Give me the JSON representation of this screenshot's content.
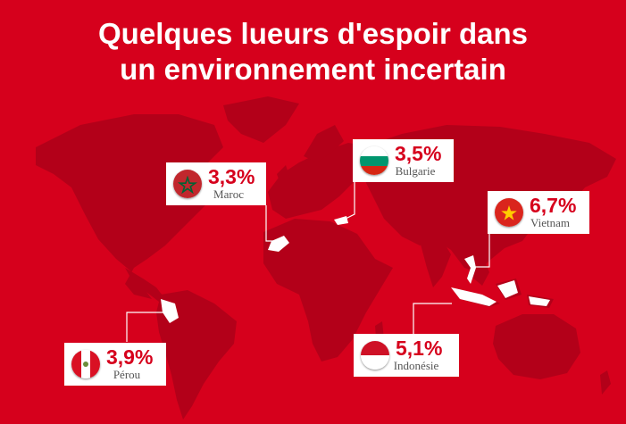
{
  "title": {
    "line1": "Quelques lueurs d'espoir dans",
    "line2": "un environnement incertain"
  },
  "colors": {
    "background": "#d6001c",
    "continents": "#b30019",
    "callout_bg": "#ffffff",
    "percent_text": "#d6001c",
    "country_text": "#555555"
  },
  "countries": [
    {
      "id": "maroc",
      "percent": "3,3%",
      "name": "Maroc",
      "flag_icon": "morocco-flag-icon"
    },
    {
      "id": "bulgarie",
      "percent": "3,5%",
      "name": "Bulgarie",
      "flag_icon": "bulgaria-flag-icon"
    },
    {
      "id": "vietnam",
      "percent": "6,7%",
      "name": "Vietnam",
      "flag_icon": "vietnam-flag-icon"
    },
    {
      "id": "indonesie",
      "percent": "5,1%",
      "name": "Indonésie",
      "flag_icon": "indonesia-flag-icon"
    },
    {
      "id": "perou",
      "percent": "3,9%",
      "name": "Pérou",
      "flag_icon": "peru-flag-icon"
    }
  ]
}
